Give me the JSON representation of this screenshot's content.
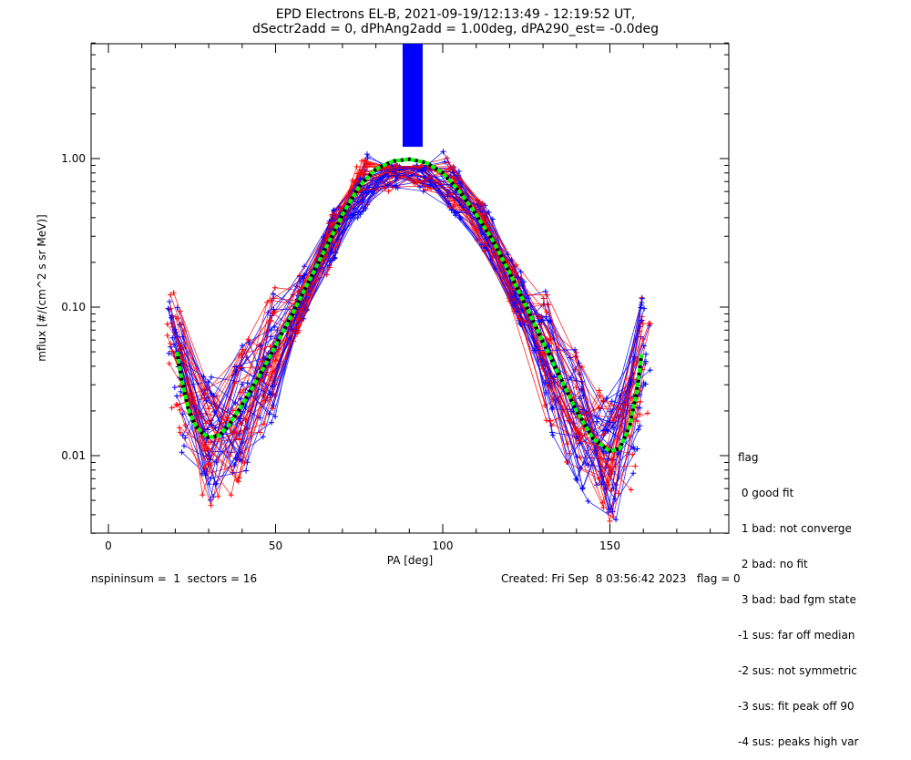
{
  "chart_data": {
    "type": "line",
    "title": "EPD Electrons EL-B, 2021-09-19/12:13:49 - 12:19:52 UT,",
    "subtitle": "dSectr2add = 0, dPhAng2add = 1.00deg, dPA290_est=  -0.0deg",
    "xlabel": "PA [deg]",
    "ylabel": "mflux [#/(cm^2 s sr MeV)]",
    "xlim": [
      -8,
      185
    ],
    "ylim": [
      0.003,
      6
    ],
    "yscale": "log",
    "xticks": [
      0,
      50,
      100,
      150
    ],
    "xtick_labels": [
      "0",
      "50",
      "100",
      "150"
    ],
    "yticks": [
      0.01,
      0.1,
      1.0
    ],
    "ytick_labels": [
      "0.01",
      "0.10",
      "1.00"
    ],
    "fit_curve": {
      "x": [
        20.5,
        22,
        24,
        26,
        28,
        30,
        33,
        36,
        40,
        45,
        50,
        55,
        60,
        65,
        70,
        75,
        80,
        85,
        90,
        95,
        100,
        105,
        110,
        115,
        120,
        125,
        130,
        135,
        140,
        145,
        150,
        153,
        156,
        158,
        159.5
      ],
      "y": [
        0.05,
        0.032,
        0.02,
        0.016,
        0.0142,
        0.0133,
        0.0136,
        0.016,
        0.022,
        0.034,
        0.055,
        0.09,
        0.15,
        0.25,
        0.42,
        0.65,
        0.85,
        0.96,
        0.99,
        0.94,
        0.8,
        0.6,
        0.42,
        0.28,
        0.17,
        0.1,
        0.058,
        0.034,
        0.02,
        0.013,
        0.0107,
        0.0112,
        0.016,
        0.027,
        0.048
      ]
    },
    "series": [
      {
        "color": "#ff0000"
      },
      {
        "color": "#0000ff"
      }
    ],
    "fit_colors": {
      "fit": "#00ff00",
      "underlay": "#000000"
    },
    "spike": {
      "x_range": [
        88,
        94
      ],
      "y_bottom": 1.2,
      "color": "#0000ff"
    }
  },
  "legend": {
    "title": "flag",
    "items": [
      " 0 good fit",
      " 1 bad: not converge",
      " 2 bad: no fit",
      " 3 bad: bad fgm state",
      "-1 sus: far off median",
      "-2 sus: not symmetric",
      "-3 sus: fit peak off 90",
      "-4 sus: peaks high var"
    ]
  },
  "footer": {
    "left": "nspininsum =  1  sectors = 16",
    "right": "Created: Fri Sep  8 03:56:42 2023   flag = 0"
  }
}
